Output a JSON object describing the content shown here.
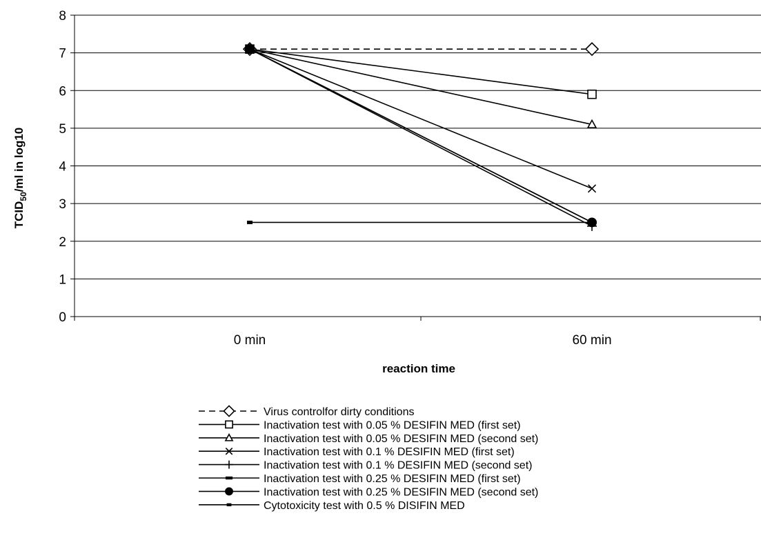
{
  "chart_data": {
    "type": "line",
    "title": "",
    "xlabel": "reaction time",
    "ylabel_main": "TCID",
    "ylabel_sub": "50",
    "ylabel_rest": "/ml in log10",
    "categories": [
      "0 min",
      "60 min"
    ],
    "ylim": [
      0,
      8
    ],
    "yticks": [
      "0",
      "1",
      "2",
      "3",
      "4",
      "5",
      "6",
      "7",
      "8"
    ],
    "grid": true,
    "legend_position": "bottom",
    "series": [
      {
        "name": "Virus controlfor dirty conditions",
        "values": [
          7.1,
          7.1
        ],
        "marker": "diamond-open",
        "dash": true
      },
      {
        "name": "Inactivation test with 0.05 % DESIFIN MED (first set)",
        "values": [
          7.1,
          5.9
        ],
        "marker": "square-open",
        "dash": false
      },
      {
        "name": "Inactivation test with 0.05 % DESIFIN MED (second set)",
        "values": [
          7.1,
          5.1
        ],
        "marker": "triangle-open",
        "dash": false
      },
      {
        "name": "Inactivation test with 0.1 % DESIFIN MED (first set)",
        "values": [
          7.1,
          3.4
        ],
        "marker": "x",
        "dash": false
      },
      {
        "name": "Inactivation test with 0.1 % DESIFIN MED (second set)",
        "values": [
          7.1,
          2.4
        ],
        "marker": "plus",
        "dash": false
      },
      {
        "name": "Inactivation test with 0.25 % DESIFIN MED (first set)",
        "values": [
          7.1,
          2.5
        ],
        "marker": "bar",
        "dash": false
      },
      {
        "name": "Inactivation test with 0.25 % DESIFIN MED (second set)",
        "values": [
          7.1,
          2.5
        ],
        "marker": "circle-filled",
        "dash": false
      },
      {
        "name": "Cytotoxicity test with 0.5 % DISIFIN MED",
        "values": [
          2.5,
          2.5
        ],
        "marker": "small-square",
        "dash": false
      }
    ],
    "line_color": "#000000",
    "grid_color": "#000000"
  }
}
